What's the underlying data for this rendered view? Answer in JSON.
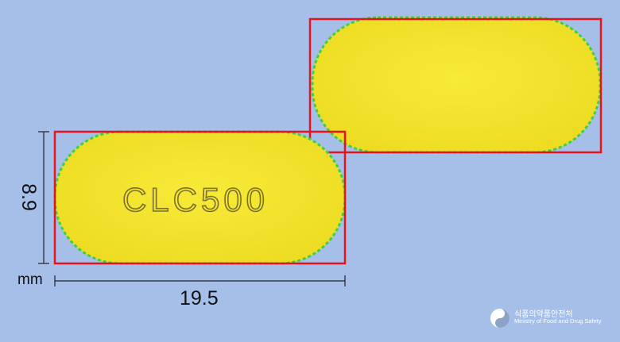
{
  "imprint": "CLC500",
  "dimensions": {
    "width": "19.5",
    "height": "8.9",
    "unit": "mm"
  },
  "logo": {
    "korean": "식품의약품안전처",
    "english": "Ministry of Food and Drug Safety"
  },
  "colors": {
    "background": "#a6bfe9",
    "tablet": "#f3e530",
    "bounding_box": "#e8121a",
    "edge_points": "#3ed23a"
  }
}
